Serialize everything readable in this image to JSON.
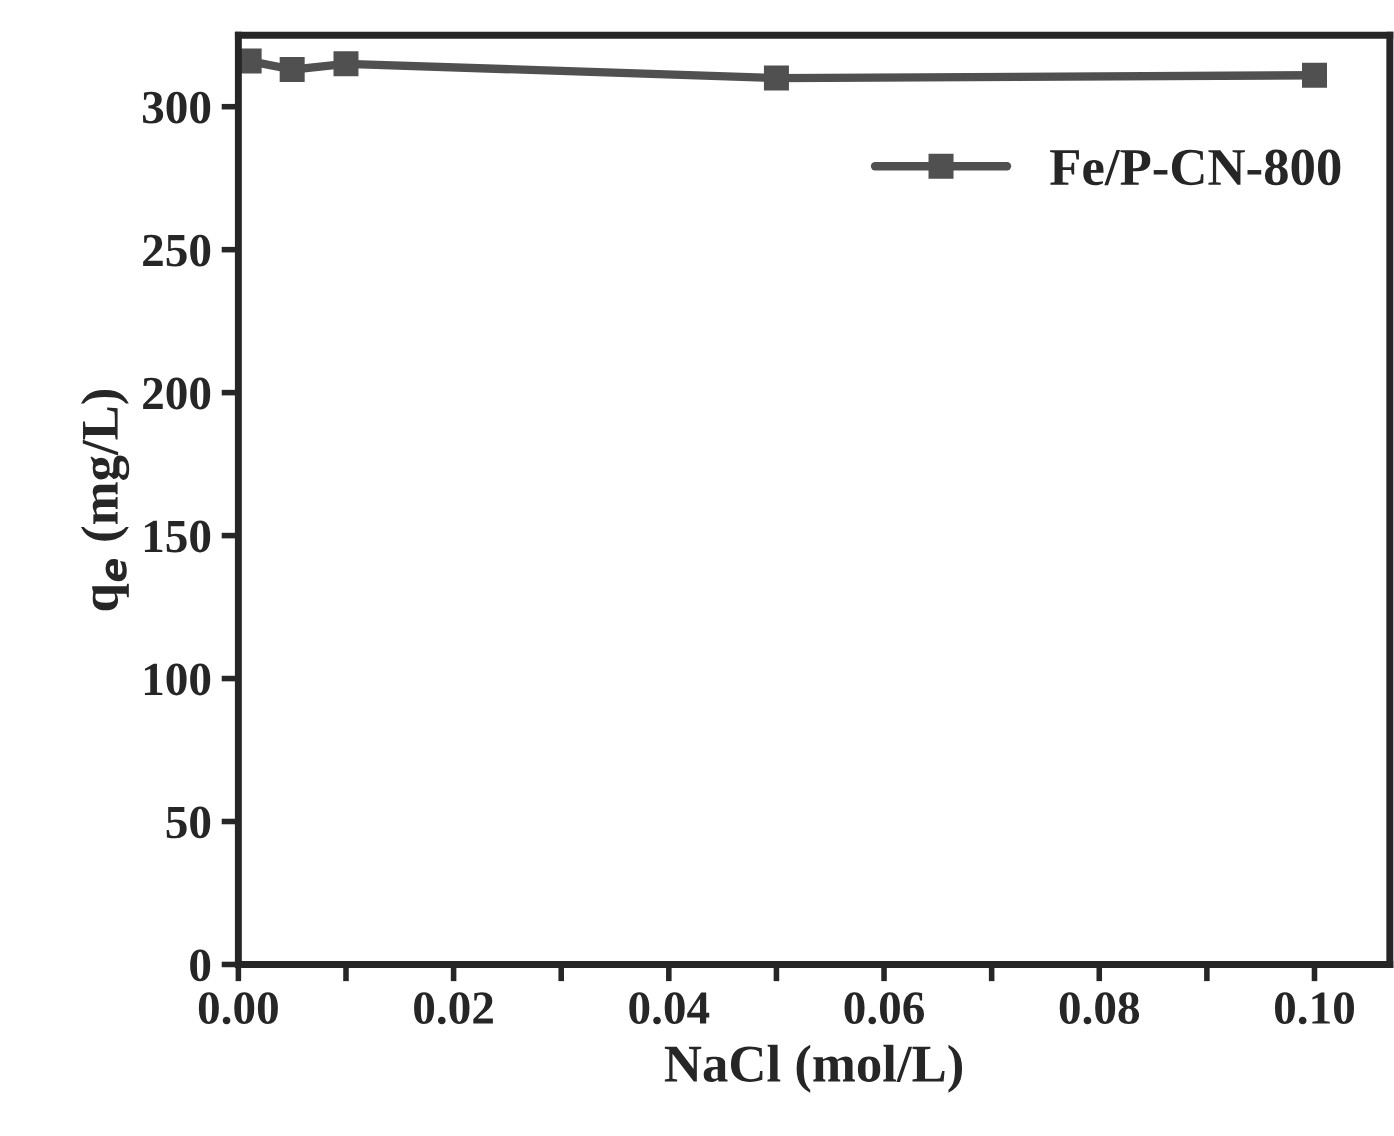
{
  "chart_data": {
    "type": "line",
    "xlabel": "NaCl (mol/L)",
    "ylabel": "q$_{e}$ (mg/L)",
    "x": [
      0.001,
      0.005,
      0.01,
      0.05,
      0.1
    ],
    "series": [
      {
        "name": "Fe/P-CN-800",
        "color": "#505050",
        "values": [
          316,
          313,
          315,
          310,
          311
        ]
      }
    ],
    "xlim": [
      0,
      0.107
    ],
    "ylim": [
      0,
      325
    ],
    "xticks": [
      {
        "value": 0,
        "label": "0.00"
      },
      {
        "value": 0.01,
        "label": null
      },
      {
        "value": 0.02,
        "label": "0.02"
      },
      {
        "value": 0.03,
        "label": null
      },
      {
        "value": 0.04,
        "label": "0.04"
      },
      {
        "value": 0.05,
        "label": null
      },
      {
        "value": 0.06,
        "label": "0.06"
      },
      {
        "value": 0.07,
        "label": null
      },
      {
        "value": 0.08,
        "label": "0.08"
      },
      {
        "value": 0.09,
        "label": null
      },
      {
        "value": 0.1,
        "label": "0.10"
      }
    ],
    "yticks": [
      0,
      50,
      100,
      150,
      200,
      250,
      300
    ],
    "grid": false,
    "legend": "top right",
    "marker": "square",
    "line_style": "solid"
  }
}
